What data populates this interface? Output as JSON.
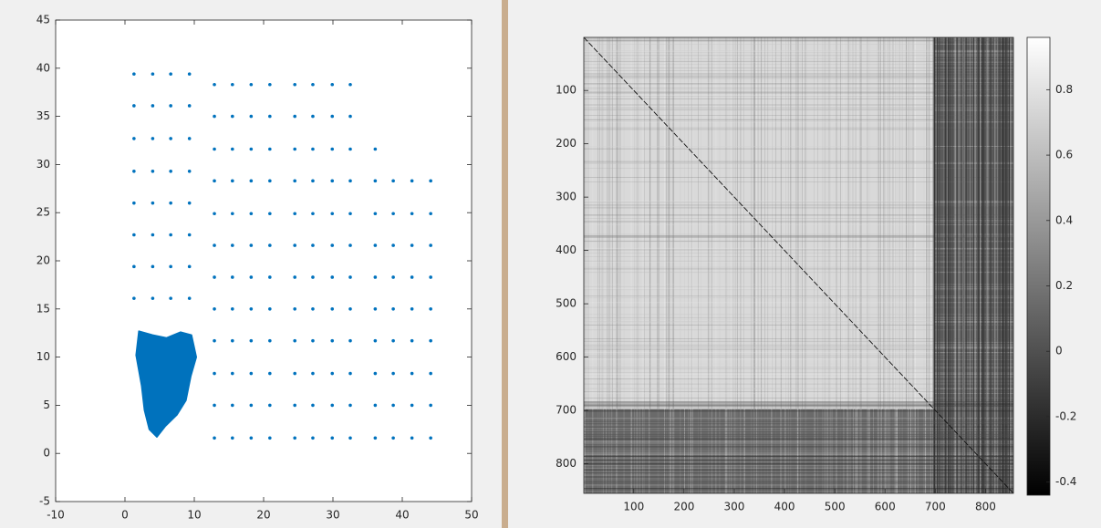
{
  "chart_data": [
    {
      "type": "scatter",
      "xlim": [
        -10,
        50
      ],
      "ylim": [
        -5,
        45
      ],
      "xticks": [
        -10,
        0,
        10,
        20,
        30,
        40,
        50
      ],
      "yticks": [
        -5,
        0,
        5,
        10,
        15,
        20,
        25,
        30,
        35,
        40,
        45
      ],
      "series": [
        {
          "type": "scatter",
          "color": "#0072bd",
          "x": [
            1.3,
            4.0,
            6.6,
            9.3,
            1.3,
            4.0,
            6.6,
            9.3,
            1.3,
            4.0,
            6.6,
            9.3,
            1.3,
            4.0,
            6.6,
            9.3,
            1.3,
            4.0,
            6.6,
            9.3,
            1.3,
            4.0,
            6.6,
            9.3,
            1.3,
            4.0,
            6.6,
            9.3,
            1.3,
            4.0,
            6.6,
            9.3,
            12.9,
            15.5,
            18.2,
            20.9,
            24.5,
            27.1,
            29.9,
            32.5,
            12.9,
            15.5,
            18.2,
            20.9,
            24.5,
            27.1,
            29.9,
            32.5,
            12.9,
            15.5,
            18.2,
            20.9,
            24.5,
            27.1,
            29.9,
            32.5,
            36.1,
            12.9,
            15.5,
            18.2,
            20.9,
            24.5,
            27.1,
            29.9,
            32.5,
            36.1,
            38.7,
            41.4,
            44.1,
            12.9,
            15.5,
            18.2,
            20.9,
            24.5,
            27.1,
            29.9,
            32.5,
            36.1,
            38.7,
            41.4,
            44.1,
            12.9,
            15.5,
            18.2,
            20.9,
            24.5,
            27.1,
            29.9,
            32.5,
            36.1,
            38.7,
            41.4,
            44.1,
            12.9,
            15.5,
            18.2,
            20.9,
            24.5,
            27.1,
            29.9,
            32.5,
            36.1,
            38.7,
            41.4,
            44.1,
            12.9,
            15.5,
            18.2,
            20.9,
            24.5,
            27.1,
            29.9,
            32.5,
            36.1,
            38.7,
            41.4,
            44.1,
            12.9,
            15.5,
            18.2,
            20.9,
            24.5,
            27.1,
            29.9,
            32.5,
            36.1,
            38.7,
            41.4,
            44.1,
            12.9,
            15.5,
            18.2,
            20.9,
            24.5,
            27.1,
            29.9,
            32.5,
            36.1,
            38.7,
            41.4,
            44.1,
            12.9,
            15.5,
            18.2,
            20.9,
            24.5,
            27.1,
            29.9,
            32.5,
            36.1,
            38.7,
            41.4,
            44.1,
            12.9,
            15.5,
            18.2,
            20.9,
            24.5,
            27.1,
            29.9,
            32.5,
            36.1,
            38.7,
            41.4,
            44.1
          ],
          "y": [
            39.4,
            39.4,
            39.4,
            39.4,
            36.1,
            36.1,
            36.1,
            36.1,
            32.7,
            32.7,
            32.7,
            32.7,
            29.3,
            29.3,
            29.3,
            29.3,
            26.0,
            26.0,
            26.0,
            26.0,
            22.7,
            22.7,
            22.7,
            22.7,
            19.4,
            19.4,
            19.4,
            19.4,
            16.1,
            16.1,
            16.1,
            16.1,
            38.3,
            38.3,
            38.3,
            38.3,
            38.3,
            38.3,
            38.3,
            38.3,
            35.0,
            35.0,
            35.0,
            35.0,
            35.0,
            35.0,
            35.0,
            35.0,
            31.6,
            31.6,
            31.6,
            31.6,
            31.6,
            31.6,
            31.6,
            31.6,
            31.6,
            28.3,
            28.3,
            28.3,
            28.3,
            28.3,
            28.3,
            28.3,
            28.3,
            28.3,
            28.3,
            28.3,
            28.3,
            24.9,
            24.9,
            24.9,
            24.9,
            24.9,
            24.9,
            24.9,
            24.9,
            24.9,
            24.9,
            24.9,
            24.9,
            21.6,
            21.6,
            21.6,
            21.6,
            21.6,
            21.6,
            21.6,
            21.6,
            21.6,
            21.6,
            21.6,
            21.6,
            18.3,
            18.3,
            18.3,
            18.3,
            18.3,
            18.3,
            18.3,
            18.3,
            18.3,
            18.3,
            18.3,
            18.3,
            15.0,
            15.0,
            15.0,
            15.0,
            15.0,
            15.0,
            15.0,
            15.0,
            15.0,
            15.0,
            15.0,
            15.0,
            11.7,
            11.7,
            11.7,
            11.7,
            11.7,
            11.7,
            11.7,
            11.7,
            11.7,
            11.7,
            11.7,
            11.7,
            8.3,
            8.3,
            8.3,
            8.3,
            8.3,
            8.3,
            8.3,
            8.3,
            8.3,
            8.3,
            8.3,
            8.3,
            5.0,
            5.0,
            5.0,
            5.0,
            5.0,
            5.0,
            5.0,
            5.0,
            5.0,
            5.0,
            5.0,
            5.0,
            1.6,
            1.6,
            1.6,
            1.6,
            1.6,
            1.6,
            1.6,
            1.6,
            1.6,
            1.6,
            1.6,
            1.6
          ]
        },
        {
          "type": "area",
          "color": "#0072bd",
          "x": [
            2.0,
            4.0,
            6.0,
            8.0,
            9.6,
            10.3,
            9.5,
            8.8,
            7.5,
            5.8,
            4.6,
            3.5,
            2.8,
            2.4,
            1.6
          ],
          "y": [
            12.7,
            12.3,
            12.0,
            12.6,
            12.3,
            10.0,
            8.0,
            5.5,
            4.0,
            2.8,
            1.7,
            2.5,
            4.5,
            7.0,
            10.2
          ]
        }
      ]
    },
    {
      "type": "heatmap",
      "xlim": [
        0.5,
        855.5
      ],
      "ylim": [
        0.5,
        855.5
      ],
      "y_reversed": true,
      "xticks": [
        100,
        200,
        300,
        400,
        500,
        600,
        700,
        800
      ],
      "yticks": [
        100,
        200,
        300,
        400,
        500,
        600,
        700,
        800
      ],
      "colormap": "gray",
      "clim": [
        -0.44,
        0.96
      ],
      "cticks": [
        -0.4,
        -0.2,
        0,
        0.2,
        0.4,
        0.6,
        0.8
      ]
    }
  ]
}
